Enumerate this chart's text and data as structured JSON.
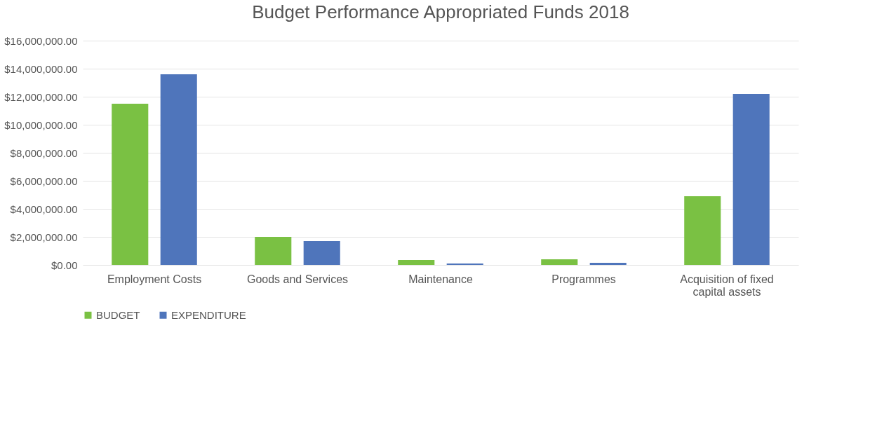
{
  "chart_data": {
    "type": "bar",
    "title": "Budget Performance Appropriated Funds 2018",
    "categories": [
      "Employment Costs",
      "Goods and Services",
      "Maintenance",
      "Programmes",
      "Acquisition of fixed capital assets"
    ],
    "series": [
      {
        "name": "BUDGET",
        "color": "#7ac143",
        "values": [
          11500000,
          2000000,
          350000,
          400000,
          4900000
        ]
      },
      {
        "name": "EXPENDITURE",
        "color": "#4f75bb",
        "values": [
          13600000,
          1700000,
          100000,
          150000,
          12200000
        ]
      }
    ],
    "ylim": [
      0,
      16000000
    ],
    "yticks": [
      {
        "value": 0,
        "label": "$0.00"
      },
      {
        "value": 2000000,
        "label": "$2,000,000.00"
      },
      {
        "value": 4000000,
        "label": "$4,000,000.00"
      },
      {
        "value": 6000000,
        "label": "$6,000,000.00"
      },
      {
        "value": 8000000,
        "label": "$8,000,000.00"
      },
      {
        "value": 10000000,
        "label": "$10,000,000.00"
      },
      {
        "value": 12000000,
        "label": "$12,000,000.00"
      },
      {
        "value": 14000000,
        "label": "$14,000,000.00"
      },
      {
        "value": 16000000,
        "label": "$16,000,000.00"
      }
    ],
    "grid": "y",
    "legend": "bottom"
  }
}
